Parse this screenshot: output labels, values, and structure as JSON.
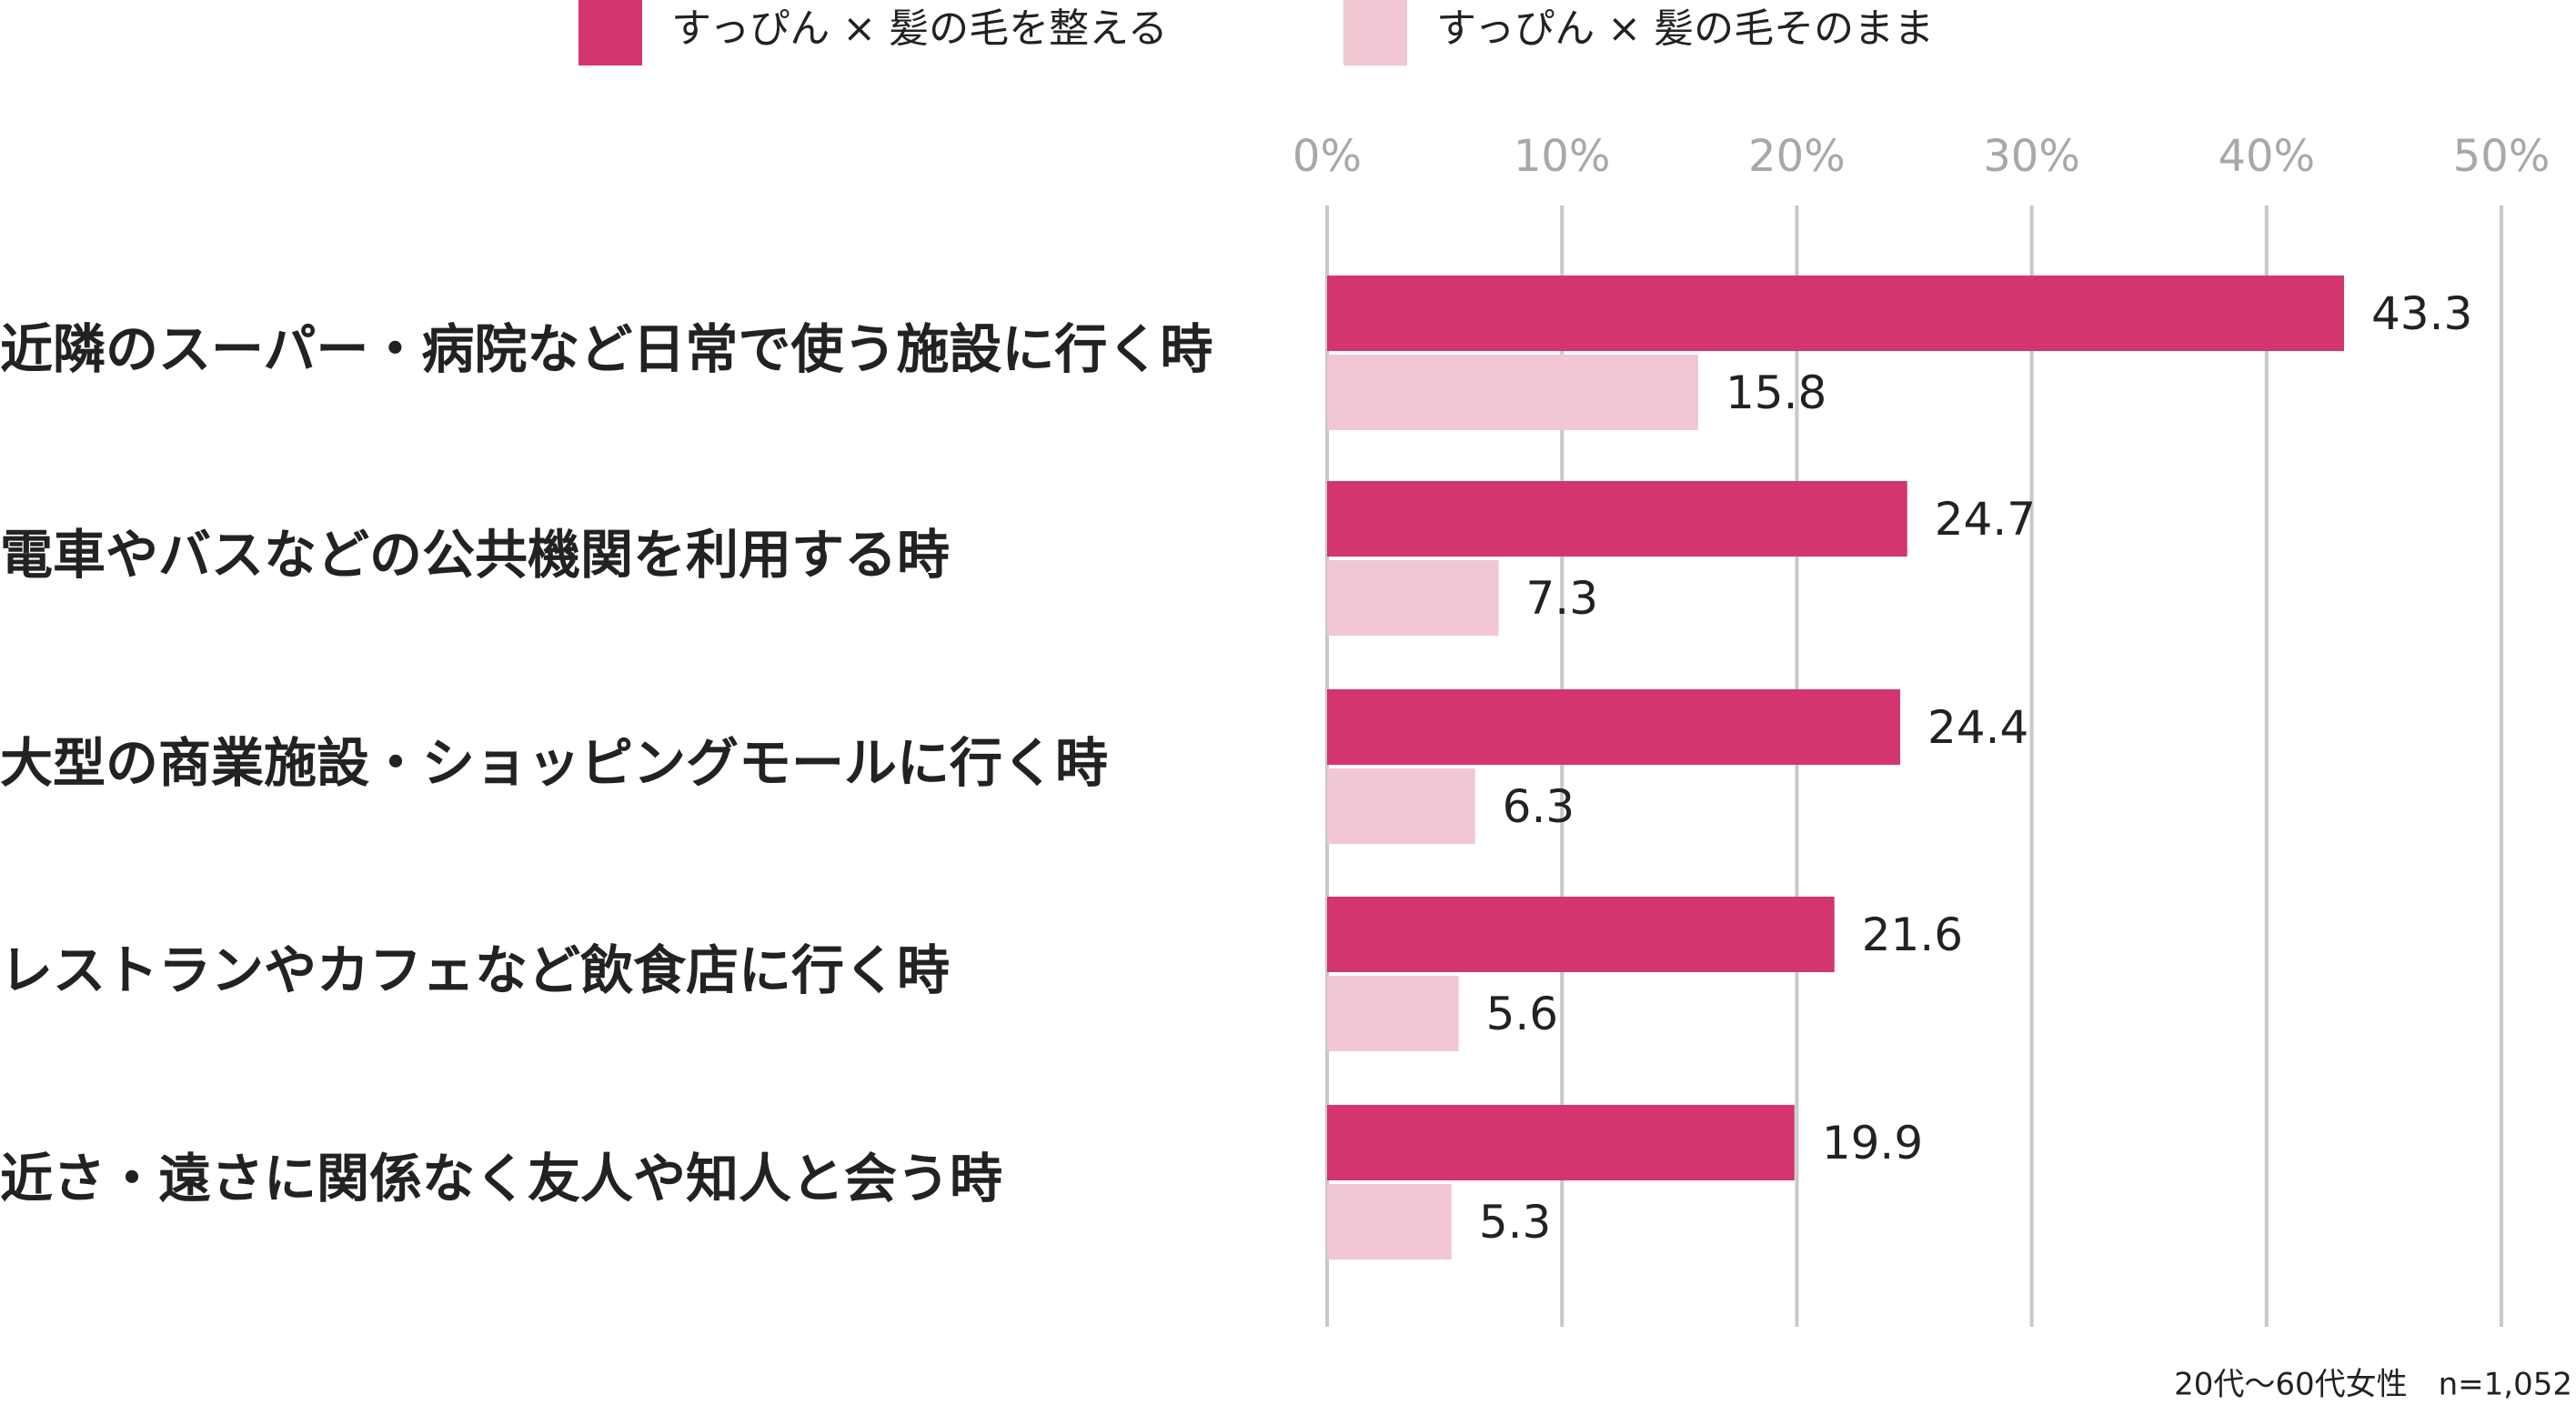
{
  "chart_data": {
    "type": "hbar",
    "categories": [
      "近隣のスーパー・病院など日常で使う施設に行く時",
      "電車やバスなどの公共機関を利用する時",
      "大型の商業施設・ショッピングモールに行く時",
      "レストランやカフェなど飲食店に行く時",
      "近さ・遠さに関係なく友人や知人と会う時"
    ],
    "series": [
      {
        "name": "すっぴん × 髪の毛を整える",
        "color": "#d4356e",
        "values": [
          43.3,
          24.7,
          24.4,
          21.6,
          19.9
        ]
      },
      {
        "name": "すっぴん × 髪の毛そのまま",
        "color": "#f2c6d2",
        "values": [
          15.8,
          7.3,
          6.3,
          5.6,
          5.3
        ]
      }
    ],
    "xlim": [
      0,
      50
    ],
    "xticks": [
      {
        "value": 0,
        "label": "0%"
      },
      {
        "value": 10,
        "label": "10%"
      },
      {
        "value": 20,
        "label": "20%"
      },
      {
        "value": 30,
        "label": "30%"
      },
      {
        "value": 40,
        "label": "40%"
      },
      {
        "value": 50,
        "label": "50%"
      }
    ],
    "grid": true,
    "legend": "top",
    "note": "20代〜60代女性　n=1,052"
  }
}
